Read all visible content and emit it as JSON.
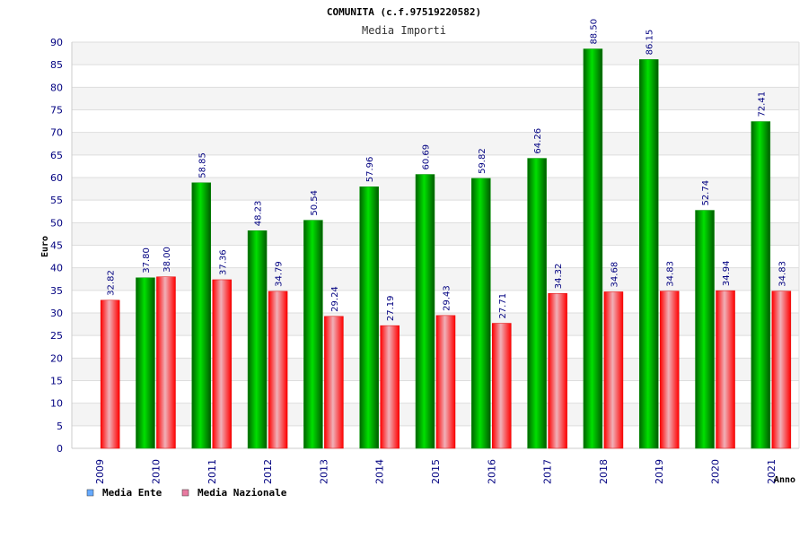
{
  "chart_data": {
    "type": "bar",
    "title": "COMUNITA (c.f.97519220582)",
    "subtitle": "Media Importi",
    "xlabel": "Anno",
    "ylabel": "Euro",
    "ylim": [
      0,
      90
    ],
    "ytick_step": 5,
    "grid": true,
    "legend_position": "bottom-left",
    "categories": [
      "2009",
      "2010",
      "2011",
      "2012",
      "2013",
      "2014",
      "2015",
      "2016",
      "2017",
      "2018",
      "2019",
      "2020",
      "2021"
    ],
    "series": [
      {
        "name": "Media Ente",
        "color": "#00c000",
        "legend_color": "#66aaff",
        "values": [
          null,
          37.8,
          58.85,
          48.23,
          50.54,
          57.96,
          60.69,
          59.82,
          64.26,
          88.5,
          86.15,
          52.74,
          72.41
        ],
        "labels": [
          "",
          "37.80",
          "58.85",
          "48.23",
          "50.54",
          "57.96",
          "60.69",
          "59.82",
          "64.26",
          "88.50",
          "86.15",
          "52.74",
          "72.41"
        ]
      },
      {
        "name": "Media Nazionale",
        "color": "#ff0000",
        "legend_color": "#e87aa0",
        "values": [
          32.82,
          38.0,
          37.36,
          34.79,
          29.24,
          27.19,
          29.43,
          27.71,
          34.32,
          34.68,
          34.83,
          34.94,
          34.83
        ],
        "labels": [
          "32.82",
          "38.00",
          "37.36",
          "34.79",
          "29.24",
          "27.19",
          "29.43",
          "27.71",
          "34.32",
          "34.68",
          "34.83",
          "34.94",
          "34.83"
        ]
      }
    ]
  }
}
